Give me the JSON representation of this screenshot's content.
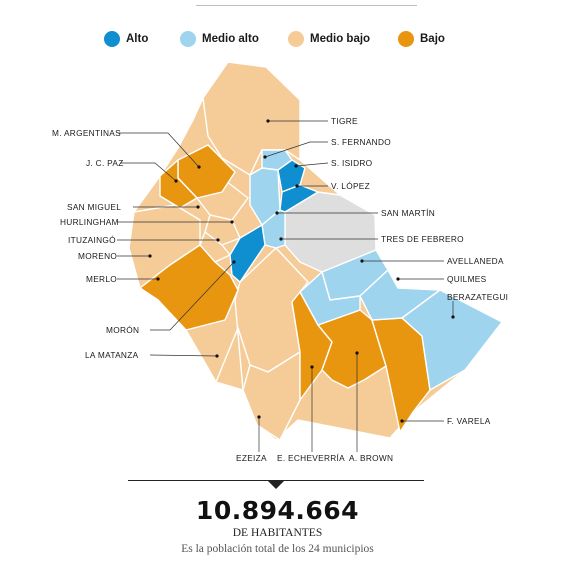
{
  "legend": [
    {
      "label": "Alto",
      "color": "#0f8fcf"
    },
    {
      "label": "Medio alto",
      "color": "#9fd4ef"
    },
    {
      "label": "Medio bajo",
      "color": "#f5cc98"
    },
    {
      "label": "Bajo",
      "color": "#e8950f"
    }
  ],
  "other_color": "#dedede",
  "municipalities": [
    {
      "name": "TIGRE",
      "level": "Medio bajo"
    },
    {
      "name": "S. FERNANDO",
      "level": "Medio alto"
    },
    {
      "name": "S. ISIDRO",
      "level": "Alto"
    },
    {
      "name": "V. LÓPEZ",
      "level": "Alto"
    },
    {
      "name": "SAN MARTÍN",
      "level": "Medio alto"
    },
    {
      "name": "TRES DE FEBRERO",
      "level": "Medio alto"
    },
    {
      "name": "AVELLANEDA",
      "level": "Medio alto"
    },
    {
      "name": "QUILMES",
      "level": "Medio alto"
    },
    {
      "name": "BERAZATEGUI",
      "level": "Medio alto"
    },
    {
      "name": "F. VARELA",
      "level": "Bajo"
    },
    {
      "name": "A. BROWN",
      "level": "Bajo"
    },
    {
      "name": "E. ECHEVERRÍA",
      "level": "Bajo"
    },
    {
      "name": "EZEIZA",
      "level": "Medio bajo"
    },
    {
      "name": "LA MATANZA",
      "level": "Medio bajo"
    },
    {
      "name": "MORÓN",
      "level": "Alto"
    },
    {
      "name": "MERLO",
      "level": "Bajo"
    },
    {
      "name": "MORENO",
      "level": "Medio bajo"
    },
    {
      "name": "ITUZAINGÓ",
      "level": "Medio bajo"
    },
    {
      "name": "HURLINGHAM",
      "level": "Medio bajo"
    },
    {
      "name": "SAN MIGUEL",
      "level": "Medio bajo"
    },
    {
      "name": "J. C. PAZ",
      "level": "Bajo"
    },
    {
      "name": "M. ARGENTINAS",
      "level": "Bajo"
    }
  ],
  "summary": {
    "total": "10.894.664",
    "unit": "DE HABITANTES",
    "caption": "Es la población total de los 24 municipios"
  }
}
